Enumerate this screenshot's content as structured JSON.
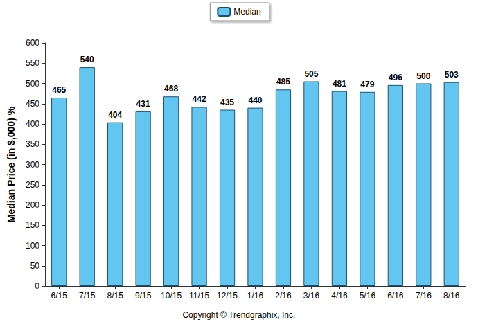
{
  "chart_data": {
    "type": "bar",
    "y_label": "Median Price (in $,000) %",
    "annotations": [
      "Copyright © Trendgraphix, Inc."
    ],
    "categories": [
      "6/15",
      "7/15",
      "8/15",
      "9/15",
      "10/15",
      "11/15",
      "12/15",
      "1/16",
      "2/16",
      "3/16",
      "4/16",
      "5/16",
      "6/16",
      "7/16",
      "8/16"
    ],
    "series": [
      {
        "name": "Median",
        "color": "#63c6f1",
        "values": [
          465,
          540,
          404,
          431,
          468,
          442,
          435,
          440,
          485,
          505,
          481,
          479,
          496,
          500,
          503
        ]
      }
    ],
    "ylim": [
      0,
      600
    ],
    "yticks": [
      0,
      50,
      100,
      150,
      200,
      250,
      300,
      350,
      400,
      450,
      500,
      550,
      600
    ],
    "grid": false,
    "legend": "top",
    "data_labels": true
  }
}
